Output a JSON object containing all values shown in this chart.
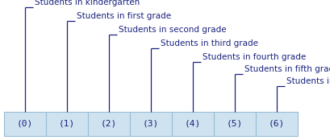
{
  "labels": [
    "(0)",
    "(1)",
    "(2)",
    "(3)",
    "(4)",
    "(5)",
    "(6)"
  ],
  "annotations": [
    "Students in kindergarten",
    "Students in first grade",
    "Students in second grade",
    "Students in third grade",
    "Students in fourth grade",
    "Students in fifth grade",
    "Students in sixth grade"
  ],
  "cell_color": "#cfe2f0",
  "cell_edge_color": "#9bbdd4",
  "text_color": "#1a237e",
  "line_color": "#1a237e",
  "bg_color": "#ffffff",
  "n_cells": 7,
  "font_size": 7.5,
  "label_font_size": 8.0
}
